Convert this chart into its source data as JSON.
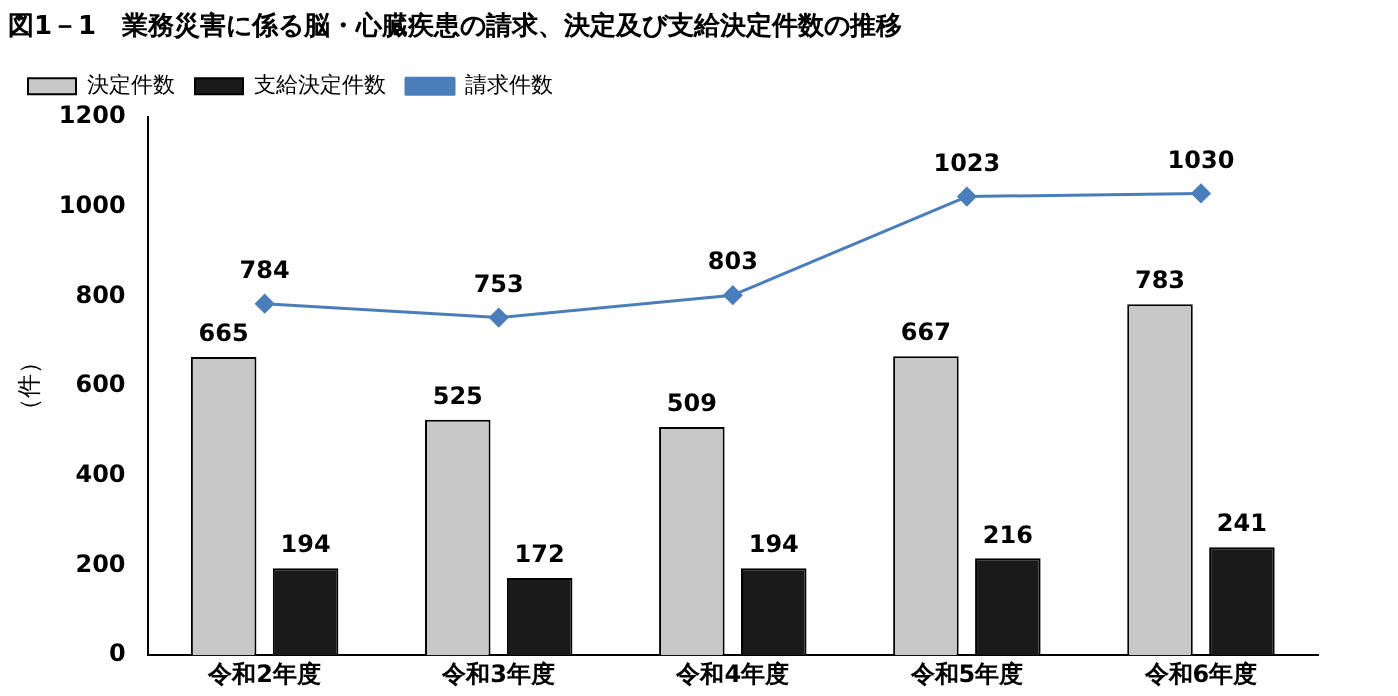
{
  "chart_data": {
    "type": "bar",
    "title": "図1－1　業務災害に係る脳・心臓疾患の請求、決定及び支給決定件数の推移",
    "ylabel": "（件）",
    "categories": [
      "令和2年度",
      "令和3年度",
      "令和4年度",
      "令和5年度",
      "令和6年度"
    ],
    "series": [
      {
        "name": "決定件数",
        "color": "#c8c8c8",
        "values": [
          665,
          525,
          509,
          667,
          783
        ]
      },
      {
        "name": "支給決定件数",
        "color": "#1a1a1a",
        "values": [
          194,
          172,
          194,
          216,
          241
        ]
      },
      {
        "name": "請求件数",
        "type": "line",
        "color": "#4a7ebb",
        "values": [
          784,
          753,
          803,
          1023,
          1030
        ]
      }
    ],
    "ylim": [
      0,
      1200
    ],
    "yticks": [
      0,
      200,
      400,
      600,
      800,
      1000,
      1200
    ],
    "grid": false,
    "legend": "top left",
    "marker": "diamond",
    "line_style": "solid",
    "data_labels": true
  }
}
